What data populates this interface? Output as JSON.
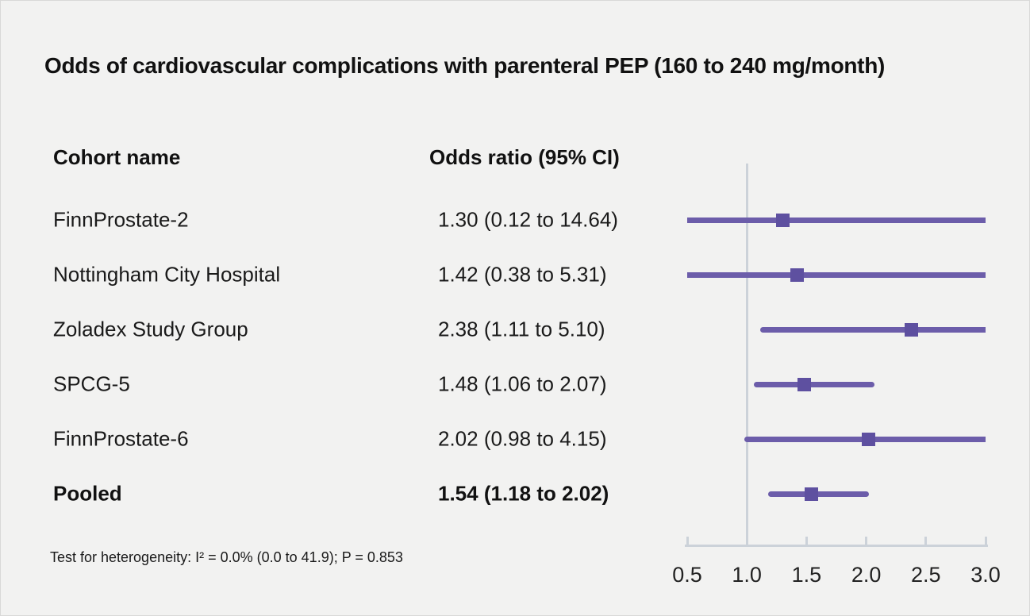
{
  "title": "Odds of cardiovascular complications with parenteral PEP (160 to 240 mg/month)",
  "columns": {
    "cohort": "Cohort name",
    "odds": "Odds ratio (95% CI)"
  },
  "footer": "Test for heterogeneity: I² = 0.0% (0.0 to 41.9); P = 0.853",
  "chart_data": {
    "type": "forest",
    "title": "Odds of cardiovascular complications with parenteral PEP (160 to 240 mg/month)",
    "x_axis": {
      "ticks": [
        "0.5",
        "1.0",
        "1.5",
        "2.0",
        "2.5",
        "3.0"
      ],
      "tick_values": [
        0.5,
        1.0,
        1.5,
        2.0,
        2.5,
        3.0
      ],
      "range": [
        0.5,
        3.0
      ],
      "reference_line": 1.0
    },
    "rows": [
      {
        "label": "FinnProstate-2",
        "display": "1.30 (0.12 to 14.64)",
        "estimate": 1.3,
        "ci_low": 0.12,
        "ci_high": 14.64,
        "bold": false
      },
      {
        "label": "Nottingham City Hospital",
        "display": "1.42 (0.38 to 5.31)",
        "estimate": 1.42,
        "ci_low": 0.38,
        "ci_high": 5.31,
        "bold": false
      },
      {
        "label": "Zoladex Study Group",
        "display": "2.38 (1.11 to 5.10)",
        "estimate": 2.38,
        "ci_low": 1.11,
        "ci_high": 5.1,
        "bold": false
      },
      {
        "label": "SPCG-5",
        "display": "1.48 (1.06 to 2.07)",
        "estimate": 1.48,
        "ci_low": 1.06,
        "ci_high": 2.07,
        "bold": false
      },
      {
        "label": "FinnProstate-6",
        "display": "2.02 (0.98 to 4.15)",
        "estimate": 2.02,
        "ci_low": 0.98,
        "ci_high": 4.15,
        "bold": false
      },
      {
        "label": "Pooled",
        "display": "1.54 (1.18 to 2.02)",
        "estimate": 1.54,
        "ci_low": 1.18,
        "ci_high": 2.02,
        "bold": true
      }
    ],
    "colors": {
      "ci_line": "#6c5daa",
      "marker": "#5e50a0",
      "axis": "#ccd2d9",
      "background": "#f2f2f1",
      "text": "#1a1a1a"
    }
  }
}
